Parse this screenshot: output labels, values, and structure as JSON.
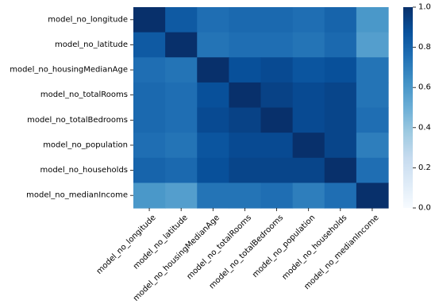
{
  "chart_data": {
    "type": "heatmap",
    "title": "",
    "xlabel": "",
    "ylabel": "",
    "labels": [
      "model_no_longitude",
      "model_no_latitude",
      "model_no_housingMedianAge",
      "model_no_totalRooms",
      "model_no_totalBedrooms",
      "model_no_population",
      "model_no_households",
      "model_no_medianIncome"
    ],
    "values": [
      [
        1.0,
        0.84,
        0.76,
        0.78,
        0.78,
        0.76,
        0.8,
        0.6
      ],
      [
        0.84,
        1.0,
        0.74,
        0.76,
        0.76,
        0.74,
        0.78,
        0.57
      ],
      [
        0.76,
        0.74,
        1.0,
        0.88,
        0.9,
        0.86,
        0.88,
        0.74
      ],
      [
        0.78,
        0.76,
        0.88,
        1.0,
        0.93,
        0.9,
        0.92,
        0.74
      ],
      [
        0.78,
        0.76,
        0.9,
        0.93,
        1.0,
        0.9,
        0.92,
        0.76
      ],
      [
        0.76,
        0.74,
        0.86,
        0.9,
        0.9,
        1.0,
        0.92,
        0.7
      ],
      [
        0.8,
        0.78,
        0.88,
        0.92,
        0.92,
        0.92,
        1.0,
        0.76
      ],
      [
        0.6,
        0.57,
        0.74,
        0.74,
        0.76,
        0.7,
        0.76,
        1.0
      ]
    ],
    "colorbar": {
      "min": 0.0,
      "max": 1.0,
      "ticks": [
        "0.0",
        "0.2",
        "0.4",
        "0.6",
        "0.8",
        "1.0"
      ],
      "colormap": "Blues",
      "colors": [
        "#f7fbff",
        "#deebf7",
        "#c6dbef",
        "#9ecae1",
        "#6baed6",
        "#4292c6",
        "#2171b5",
        "#08519c",
        "#08306b"
      ]
    },
    "grid": false
  }
}
